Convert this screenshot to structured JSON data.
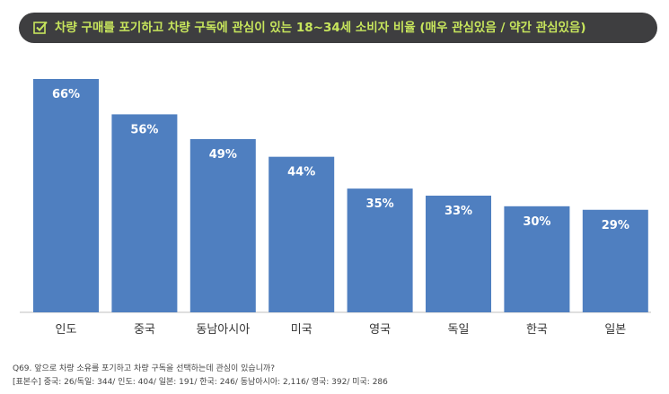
{
  "title": "차량 구매를 포기하고 차량 구독에 관심이 있는 18~34세 소비자 비율 (매우 관심있음 / 약간 관심있음)",
  "title_icon": "checkbox-icon",
  "colors": {
    "bar": "#4f7fc0",
    "title_bg": "#3e3e40",
    "title_text": "#c7e55c"
  },
  "chart_data": {
    "type": "bar",
    "title": "차량 구매를 포기하고 차량 구독에 관심이 있는 18~34세 소비자 비율 (매우 관심있음 / 약간 관심있음)",
    "categories": [
      "인도",
      "중국",
      "동남아시아",
      "미국",
      "영국",
      "독일",
      "한국",
      "일본"
    ],
    "values": [
      66,
      56,
      49,
      44,
      35,
      33,
      30,
      29
    ],
    "value_labels": [
      "66%",
      "56%",
      "49%",
      "44%",
      "35%",
      "33%",
      "30%",
      "29%"
    ],
    "unit": "%",
    "ylim": [
      0,
      66
    ],
    "grid": false,
    "legend": "none"
  },
  "footnotes": {
    "question": "Q69. 앞으로 차량 소유를 포기하고 차량 구독을 선택하는데 관심이 있습니까?",
    "sample": "[표본수] 중국: 26/독일: 344/ 인도: 404/ 일본: 191/ 한국: 246/ 동남아시아: 2,116/ 영국: 392/ 미국: 286"
  }
}
